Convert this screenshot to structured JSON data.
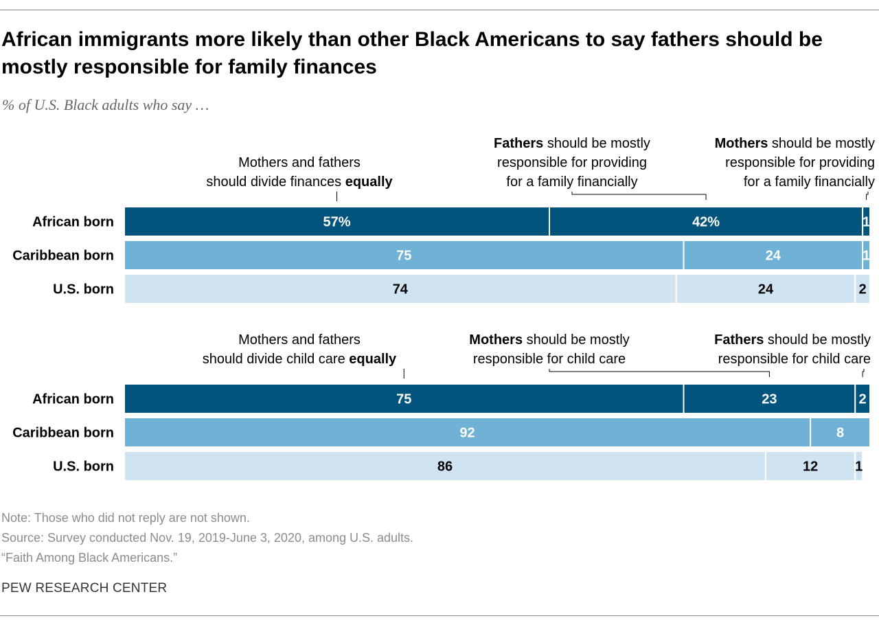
{
  "title": "African immigrants more likely than other Black Americans to say fathers should be mostly responsible for family finances",
  "subtitle": "% of U.S. Black adults who say …",
  "notes": {
    "note": "Note: Those who did not reply are not shown.",
    "source": "Source: Survey conducted Nov. 19, 2019-June 3, 2020, among U.S. adults.",
    "report": "“Faith Among Black Americans.”"
  },
  "org": "PEW RESEARCH CENTER",
  "colors": {
    "african": "#03547c",
    "caribbean": "#6fb2d6",
    "us": "#cfe3f0",
    "label_dark_bg": "#ffffff",
    "label_light_bg": "#000000",
    "rule": "#808080"
  },
  "chart_data": [
    {
      "type": "bar",
      "stacked": true,
      "orientation": "horizontal",
      "topic": "finances",
      "categories": [
        "African born",
        "Caribbean born",
        "U.S. born"
      ],
      "series": [
        {
          "name": "Mothers and fathers should divide finances equally",
          "label_parts": [
            {
              "text": "Mothers and fathers",
              "bold": false
            },
            {
              "text": "\n",
              "bold": false
            },
            {
              "text": "should divide finances ",
              "bold": false
            },
            {
              "text": "equally",
              "bold": true
            }
          ],
          "values": [
            57,
            75,
            74
          ]
        },
        {
          "name": "Fathers should be mostly responsible for providing for a family financially",
          "label_parts": [
            {
              "text": "Fathers",
              "bold": true
            },
            {
              "text": " should be mostly",
              "bold": false
            },
            {
              "text": "\n",
              "bold": false
            },
            {
              "text": "responsible for providing",
              "bold": false
            },
            {
              "text": "\n",
              "bold": false
            },
            {
              "text": "for a family financially",
              "bold": false
            }
          ],
          "values": [
            42,
            24,
            24
          ]
        },
        {
          "name": "Mothers should be mostly responsible for providing for a family financially",
          "label_parts": [
            {
              "text": "Mothers",
              "bold": true
            },
            {
              "text": " should be mostly",
              "bold": false
            },
            {
              "text": "\n",
              "bold": false
            },
            {
              "text": "responsible for providing",
              "bold": false
            },
            {
              "text": "\n",
              "bold": false
            },
            {
              "text": "for a family financially",
              "bold": false
            }
          ],
          "values": [
            1,
            1,
            2
          ]
        }
      ],
      "value_labels": [
        [
          "57%",
          "42%",
          "1"
        ],
        [
          "75",
          "24",
          "1"
        ],
        [
          "74",
          "24",
          "2"
        ]
      ],
      "xlim": [
        0,
        100
      ]
    },
    {
      "type": "bar",
      "stacked": true,
      "orientation": "horizontal",
      "topic": "child care",
      "categories": [
        "African born",
        "Caribbean born",
        "U.S. born"
      ],
      "series": [
        {
          "name": "Mothers and fathers should divide child care equally",
          "label_parts": [
            {
              "text": "Mothers and fathers",
              "bold": false
            },
            {
              "text": "\n",
              "bold": false
            },
            {
              "text": "should divide child care ",
              "bold": false
            },
            {
              "text": "equally",
              "bold": true
            }
          ],
          "values": [
            75,
            92,
            86
          ]
        },
        {
          "name": "Mothers should be mostly responsible for child care",
          "label_parts": [
            {
              "text": "Mothers",
              "bold": true
            },
            {
              "text": " should be mostly",
              "bold": false
            },
            {
              "text": "\n",
              "bold": false
            },
            {
              "text": "responsible for child care",
              "bold": false
            }
          ],
          "values": [
            23,
            8,
            12
          ]
        },
        {
          "name": "Fathers should be mostly responsible for child care",
          "label_parts": [
            {
              "text": "Fathers",
              "bold": true
            },
            {
              "text": " should be mostly",
              "bold": false
            },
            {
              "text": "\n",
              "bold": false
            },
            {
              "text": "responsible for child care",
              "bold": false
            }
          ],
          "values": [
            2,
            0,
            1
          ]
        }
      ],
      "value_labels": [
        [
          "75",
          "23",
          "2"
        ],
        [
          "92",
          "8",
          ""
        ],
        [
          "86",
          "12",
          "1"
        ]
      ],
      "xlim": [
        0,
        100
      ]
    }
  ]
}
